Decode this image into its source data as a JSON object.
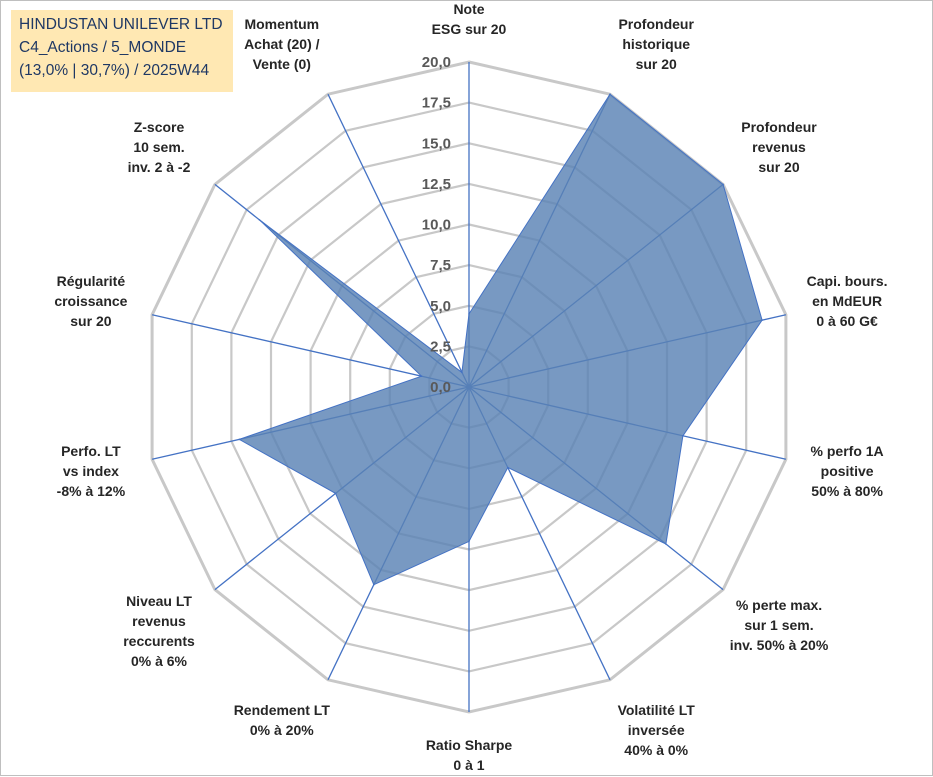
{
  "header": {
    "line1": "HINDUSTAN UNILEVER LTD",
    "line2": "C4_Actions / 5_MONDE",
    "line3": "(13,0% | 30,7%) / 2025W44"
  },
  "colors": {
    "fill": "#5a83b4",
    "stroke": "#4472c4",
    "grid": "#c8c8c8",
    "spoke": "#4472c4"
  },
  "chart_data": {
    "type": "radar",
    "title": "HINDUSTAN UNILEVER LTD",
    "rmin": 0,
    "rmax": 20,
    "ticks": [
      "0,0",
      "2,5",
      "5,0",
      "7,5",
      "10,0",
      "12,5",
      "15,0",
      "17,5",
      "20,0"
    ],
    "axes": [
      {
        "label": [
          "Note",
          "ESG sur 20"
        ],
        "value": 4.5
      },
      {
        "label": [
          "Profondeur",
          "historique",
          "sur 20"
        ],
        "value": 20
      },
      {
        "label": [
          "Profondeur",
          "revenus",
          "sur 20"
        ],
        "value": 20
      },
      {
        "label": [
          "Capi. bours.",
          "en MdEUR",
          "0 à 60 G€"
        ],
        "value": 18.5
      },
      {
        "label": [
          "% perfo 1A",
          "positive",
          "50% à 80%"
        ],
        "value": 13.5
      },
      {
        "label": [
          "% perte max.",
          "sur 1 sem.",
          "inv. 50% à 20%"
        ],
        "value": 15.5
      },
      {
        "label": [
          "Volatilité LT",
          "inversée",
          "40% à 0%"
        ],
        "value": 5.5
      },
      {
        "label": [
          "Ratio Sharpe",
          "0 à 1"
        ],
        "value": 9.5
      },
      {
        "label": [
          "Rendement LT",
          "0% à 20%"
        ],
        "value": 13.5
      },
      {
        "label": [
          "Niveau LT",
          "revenus",
          "reccurents",
          "0% à 6%"
        ],
        "value": 10.5
      },
      {
        "label": [
          "Perfo. LT",
          "vs index",
          "-8% à 12%"
        ],
        "value": 14.5
      },
      {
        "label": [
          "Régularité",
          "croissance",
          "sur 20"
        ],
        "value": 3.0
      },
      {
        "label": [
          "Z-score",
          "10 sem.",
          "inv. 2 à -2"
        ],
        "value": 16.5
      },
      {
        "label": [
          "Momentum",
          "Achat (20) /",
          "Vente (0)"
        ],
        "value": 1.0
      }
    ],
    "series": [
      {
        "name": "HINDUSTAN UNILEVER LTD",
        "values": [
          4.5,
          20,
          20,
          18.5,
          13.5,
          15.5,
          5.5,
          9.5,
          13.5,
          10.5,
          14.5,
          3.0,
          16.5,
          1.0
        ]
      }
    ]
  }
}
